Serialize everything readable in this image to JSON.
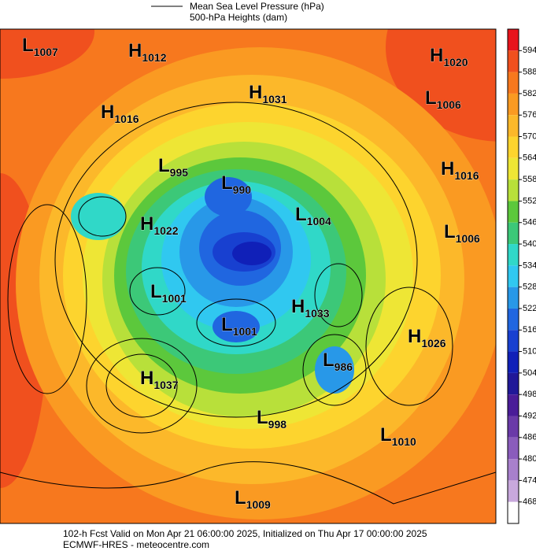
{
  "legend": {
    "pressure": "Mean Sea Level Pressure (hPa)",
    "heights": "500-hPa Heights (dam)"
  },
  "centers": [
    {
      "kind": "L",
      "value": 1007
    },
    {
      "kind": "H",
      "value": 1012
    },
    {
      "kind": "H",
      "value": 1020
    },
    {
      "kind": "L",
      "value": 1006
    },
    {
      "kind": "H",
      "value": 1031
    },
    {
      "kind": "H",
      "value": 1016
    },
    {
      "kind": "L",
      "value": 995
    },
    {
      "kind": "H",
      "value": 1016
    },
    {
      "kind": "L",
      "value": 990
    },
    {
      "kind": "L",
      "value": 1004
    },
    {
      "kind": "H",
      "value": 1022
    },
    {
      "kind": "L",
      "value": 1006
    },
    {
      "kind": "L",
      "value": 1001
    },
    {
      "kind": "H",
      "value": 1033
    },
    {
      "kind": "L",
      "value": 1001
    },
    {
      "kind": "H",
      "value": 1026
    },
    {
      "kind": "L",
      "value": 986
    },
    {
      "kind": "H",
      "value": 1037
    },
    {
      "kind": "L",
      "value": 998
    },
    {
      "kind": "L",
      "value": 1010
    },
    {
      "kind": "L",
      "value": 1009
    }
  ],
  "colorbar": {
    "levels": [
      594,
      588,
      582,
      576,
      570,
      564,
      558,
      552,
      546,
      540,
      534,
      528,
      522,
      516,
      510,
      504,
      498,
      492,
      486,
      480,
      474,
      468
    ],
    "colors": [
      "#e8141c",
      "#f0501e",
      "#f7781e",
      "#fa9a22",
      "#fcb82a",
      "#fdd42e",
      "#eee635",
      "#b8e03a",
      "#5cc83c",
      "#3cc878",
      "#30d8c8",
      "#30c8f0",
      "#2898e8",
      "#2066e0",
      "#1840d0",
      "#1020b8",
      "#201898",
      "#4a1c98",
      "#6a3aa8",
      "#8a5cbc",
      "#a880cc",
      "#c8a8dc",
      "#ffffff"
    ]
  },
  "footer": {
    "valid": "102-h Fcst Valid on Mon Apr 21 06:00:00 2025, Initialized on Thu Apr 17 00:00:00 2025",
    "source": "ECMWF-HRES - meteocentre.com"
  }
}
